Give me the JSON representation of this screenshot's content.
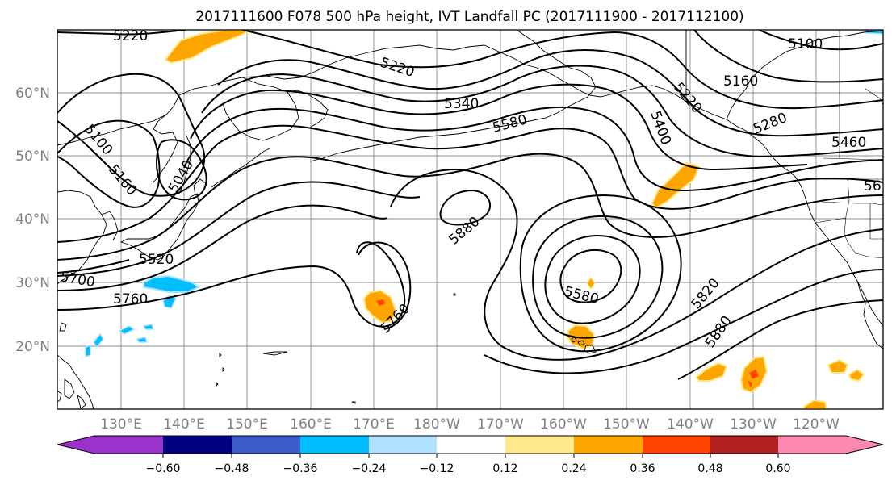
{
  "title": "2017111600 F078 500 hPa height, IVT Landfall PC (2017111900 - 2017112100)",
  "map": {
    "lat_ticks": [
      "60°N",
      "50°N",
      "40°N",
      "30°N",
      "20°N"
    ],
    "lon_ticks": [
      "130°E",
      "140°E",
      "150°E",
      "160°E",
      "170°E",
      "180°W",
      "170°W",
      "160°W",
      "150°W",
      "140°W",
      "130°W",
      "120°W"
    ],
    "contour_labels": [
      "5220",
      "5220",
      "5100",
      "5160",
      "5340",
      "5580",
      "5220",
      "5400",
      "5280",
      "5460",
      "56",
      "5100",
      "5160",
      "5040",
      "5520",
      "5700",
      "5760",
      "5880",
      "5760",
      "5580",
      "5820",
      "5880"
    ]
  },
  "colorbar": {
    "ticks": [
      "−0.60",
      "−0.48",
      "−0.36",
      "−0.24",
      "−0.12",
      "0.12",
      "0.24",
      "0.36",
      "0.48",
      "0.60"
    ],
    "colors": {
      "under": "#9933cc",
      "b1": "#000080",
      "b2": "#3b5bcb",
      "b3": "#00bfff",
      "b4": "#b0e0ff",
      "b5": "#ffffff",
      "b6": "#ffe98a",
      "b7": "#ffa500",
      "b8": "#ff4500",
      "b9": "#b22222",
      "over": "#ff88b0"
    }
  }
}
